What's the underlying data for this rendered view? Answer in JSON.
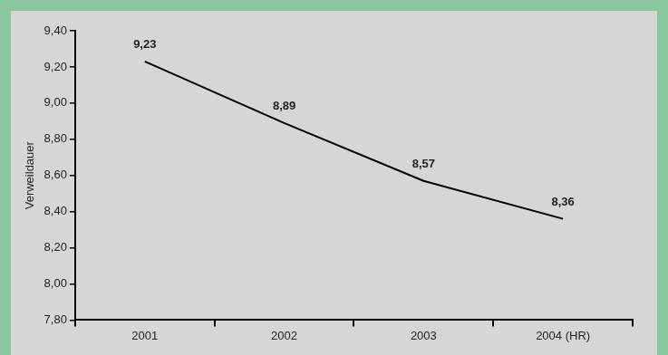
{
  "chart_data": {
    "type": "line",
    "y_label": "Verweildauer",
    "categories": [
      "2001",
      "2002",
      "2003",
      "2004 (HR)"
    ],
    "values": [
      9.23,
      8.89,
      8.57,
      8.36
    ],
    "value_labels": [
      "9,23",
      "8,89",
      "8,57",
      "8,36"
    ],
    "color": "#000000",
    "marker": "none",
    "ylim": [
      7.8,
      9.4
    ],
    "yticks": [
      {
        "value": 7.8,
        "label": "7,80"
      },
      {
        "value": 8.0,
        "label": "8,00"
      },
      {
        "value": 8.2,
        "label": "8,20"
      },
      {
        "value": 8.4,
        "label": "8,40"
      },
      {
        "value": 8.6,
        "label": "8,60"
      },
      {
        "value": 8.8,
        "label": "8,80"
      },
      {
        "value": 9.0,
        "label": "9,00"
      },
      {
        "value": 9.2,
        "label": "9,20"
      },
      {
        "value": 9.4,
        "label": "9,40"
      }
    ],
    "grid": false,
    "data_labels": true
  }
}
